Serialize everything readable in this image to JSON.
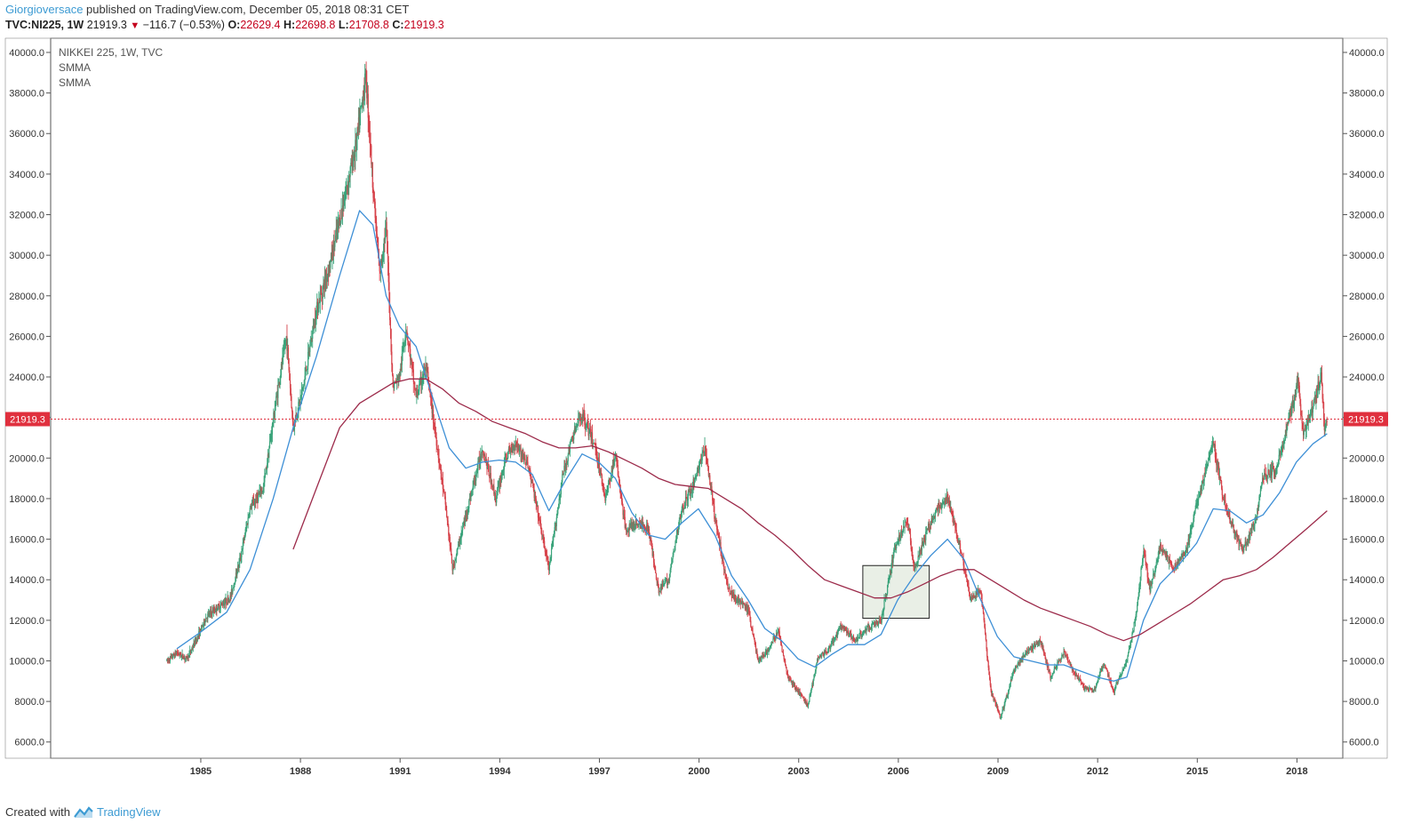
{
  "header": {
    "author": "Giorgioversace",
    "published_text": " published on TradingView.com, December 05, 2018 08:31 CET",
    "symbol": "TVC:NI225, 1W",
    "last": "21919.3",
    "change": "−116.7 (−0.53%)",
    "o_label": "O:",
    "o_value": "22629.4",
    "h_label": "H:",
    "h_value": "22698.8",
    "l_label": "L:",
    "l_value": "21708.8",
    "c_label": "C:",
    "c_value": "21919.3"
  },
  "footer": {
    "created_with": "Created with",
    "brand": "TradingView"
  },
  "legend": {
    "title": "NIKKEI 225, 1W, TVC",
    "indicator1": "SMMA",
    "indicator2": "SMMA"
  },
  "colors": {
    "up_candle": "#3aa37a",
    "down_candle": "#d6424a",
    "smma_fast": "#3d8fd6",
    "smma_slow": "#9c2a4a",
    "price_line": "#e0303e",
    "box_fill": "#e9efe6",
    "box_stroke": "#222222",
    "axis": "#555555"
  },
  "chart_data": {
    "type": "line",
    "title": "NIKKEI 225, 1W, TVC",
    "x_ticks": [
      "1985",
      "1988",
      "1991",
      "1994",
      "1997",
      "2000",
      "2003",
      "2006",
      "2009",
      "2012",
      "2015",
      "2018"
    ],
    "y_ticks": [
      6000,
      8000,
      10000,
      12000,
      14000,
      16000,
      18000,
      20000,
      22000,
      24000,
      26000,
      28000,
      30000,
      32000,
      34000,
      36000,
      38000,
      40000
    ],
    "y_tick_labels": [
      "6000.0",
      "8000.0",
      "10000.0",
      "12000.0",
      "14000.0",
      "16000.0",
      "18000.0",
      "20000.0",
      "22000.0",
      "24000.0",
      "26000.0",
      "28000.0",
      "30000.0",
      "32000.0",
      "34000.0",
      "36000.0",
      "38000.0",
      "40000.0"
    ],
    "ylim": [
      5200,
      40700
    ],
    "xlim": [
      1980.5,
      2019.4
    ],
    "last_price": 21919.3,
    "last_price_label": "21919.3",
    "series": [
      {
        "name": "NIKKEI 225",
        "kind": "price",
        "points": [
          [
            1984.0,
            10000
          ],
          [
            1984.3,
            10400
          ],
          [
            1984.6,
            10100
          ],
          [
            1984.9,
            11100
          ],
          [
            1985.2,
            12200
          ],
          [
            1985.5,
            12600
          ],
          [
            1985.9,
            13100
          ],
          [
            1986.2,
            15000
          ],
          [
            1986.5,
            17500
          ],
          [
            1986.9,
            18500
          ],
          [
            1987.3,
            23000
          ],
          [
            1987.6,
            26000
          ],
          [
            1987.8,
            21500
          ],
          [
            1988.1,
            23500
          ],
          [
            1988.5,
            27300
          ],
          [
            1988.9,
            29500
          ],
          [
            1989.3,
            32500
          ],
          [
            1989.7,
            35500
          ],
          [
            1989.99,
            38900
          ],
          [
            1990.2,
            33500
          ],
          [
            1990.4,
            29000
          ],
          [
            1990.6,
            31500
          ],
          [
            1990.8,
            23500
          ],
          [
            1991.0,
            24000
          ],
          [
            1991.2,
            26500
          ],
          [
            1991.5,
            23000
          ],
          [
            1991.8,
            24500
          ],
          [
            1992.1,
            21000
          ],
          [
            1992.4,
            17500
          ],
          [
            1992.6,
            14500
          ],
          [
            1992.9,
            16500
          ],
          [
            1993.2,
            18500
          ],
          [
            1993.5,
            20500
          ],
          [
            1993.9,
            18000
          ],
          [
            1994.2,
            20000
          ],
          [
            1994.5,
            20800
          ],
          [
            1994.9,
            19500
          ],
          [
            1995.2,
            17000
          ],
          [
            1995.5,
            14500
          ],
          [
            1995.9,
            19000
          ],
          [
            1996.2,
            21000
          ],
          [
            1996.5,
            22200
          ],
          [
            1996.9,
            20500
          ],
          [
            1997.2,
            18000
          ],
          [
            1997.5,
            20200
          ],
          [
            1997.8,
            16500
          ],
          [
            1998.2,
            16800
          ],
          [
            1998.5,
            16500
          ],
          [
            1998.8,
            13500
          ],
          [
            1999.1,
            14000
          ],
          [
            1999.5,
            17500
          ],
          [
            1999.8,
            18500
          ],
          [
            2000.2,
            20500
          ],
          [
            2000.5,
            17000
          ],
          [
            2000.9,
            13500
          ],
          [
            2001.2,
            13000
          ],
          [
            2001.5,
            12500
          ],
          [
            2001.8,
            10000
          ],
          [
            2002.1,
            10500
          ],
          [
            2002.4,
            11500
          ],
          [
            2002.7,
            9200
          ],
          [
            2003.0,
            8500
          ],
          [
            2003.3,
            7800
          ],
          [
            2003.6,
            10200
          ],
          [
            2003.9,
            10500
          ],
          [
            2004.3,
            11700
          ],
          [
            2004.7,
            11000
          ],
          [
            2005.0,
            11500
          ],
          [
            2005.5,
            12000
          ],
          [
            2005.9,
            15500
          ],
          [
            2006.3,
            17000
          ],
          [
            2006.5,
            14500
          ],
          [
            2006.9,
            16500
          ],
          [
            2007.2,
            17500
          ],
          [
            2007.5,
            18000
          ],
          [
            2007.9,
            15500
          ],
          [
            2008.2,
            13000
          ],
          [
            2008.5,
            13500
          ],
          [
            2008.8,
            8500
          ],
          [
            2009.1,
            7200
          ],
          [
            2009.5,
            9500
          ],
          [
            2009.9,
            10500
          ],
          [
            2010.3,
            11000
          ],
          [
            2010.6,
            9200
          ],
          [
            2011.0,
            10400
          ],
          [
            2011.3,
            9500
          ],
          [
            2011.6,
            8700
          ],
          [
            2011.9,
            8500
          ],
          [
            2012.2,
            9900
          ],
          [
            2012.5,
            8500
          ],
          [
            2012.9,
            10000
          ],
          [
            2013.2,
            12500
          ],
          [
            2013.4,
            15500
          ],
          [
            2013.6,
            13500
          ],
          [
            2013.9,
            15700
          ],
          [
            2014.3,
            14500
          ],
          [
            2014.7,
            15500
          ],
          [
            2014.95,
            17400
          ],
          [
            2015.3,
            19500
          ],
          [
            2015.5,
            20800
          ],
          [
            2015.8,
            18000
          ],
          [
            2016.1,
            16500
          ],
          [
            2016.4,
            15500
          ],
          [
            2016.8,
            17000
          ],
          [
            2016.99,
            19100
          ],
          [
            2017.4,
            19500
          ],
          [
            2017.8,
            22000
          ],
          [
            2018.05,
            23900
          ],
          [
            2018.2,
            21200
          ],
          [
            2018.5,
            22500
          ],
          [
            2018.75,
            24100
          ],
          [
            2018.85,
            21300
          ],
          [
            2018.93,
            21919.3
          ]
        ]
      },
      {
        "name": "SMMA",
        "kind": "smma_fast",
        "points": [
          [
            1984.3,
            10600
          ],
          [
            1985.0,
            11400
          ],
          [
            1985.8,
            12400
          ],
          [
            1986.5,
            14500
          ],
          [
            1987.2,
            18000
          ],
          [
            1987.8,
            21500
          ],
          [
            1988.5,
            25000
          ],
          [
            1989.2,
            29000
          ],
          [
            1989.8,
            32200
          ],
          [
            1990.2,
            31500
          ],
          [
            1990.6,
            28000
          ],
          [
            1991.0,
            26500
          ],
          [
            1991.5,
            25500
          ],
          [
            1992.0,
            23000
          ],
          [
            1992.5,
            20500
          ],
          [
            1993.0,
            19500
          ],
          [
            1993.5,
            19800
          ],
          [
            1994.0,
            19900
          ],
          [
            1994.5,
            19800
          ],
          [
            1995.0,
            19200
          ],
          [
            1995.5,
            17400
          ],
          [
            1996.0,
            18900
          ],
          [
            1996.5,
            20200
          ],
          [
            1997.0,
            19800
          ],
          [
            1997.5,
            19000
          ],
          [
            1998.0,
            17300
          ],
          [
            1998.5,
            16200
          ],
          [
            1999.0,
            16000
          ],
          [
            1999.5,
            16800
          ],
          [
            2000.0,
            17500
          ],
          [
            2000.5,
            16200
          ],
          [
            2001.0,
            14200
          ],
          [
            2001.5,
            13000
          ],
          [
            2002.0,
            11600
          ],
          [
            2002.5,
            11000
          ],
          [
            2003.0,
            10100
          ],
          [
            2003.5,
            9700
          ],
          [
            2004.0,
            10300
          ],
          [
            2004.5,
            10800
          ],
          [
            2005.0,
            10800
          ],
          [
            2005.5,
            11300
          ],
          [
            2006.0,
            13000
          ],
          [
            2006.5,
            14200
          ],
          [
            2007.0,
            15200
          ],
          [
            2007.5,
            16000
          ],
          [
            2008.0,
            15000
          ],
          [
            2008.5,
            13000
          ],
          [
            2009.0,
            11200
          ],
          [
            2009.5,
            10200
          ],
          [
            2010.0,
            10000
          ],
          [
            2010.5,
            9800
          ],
          [
            2011.0,
            9800
          ],
          [
            2011.5,
            9500
          ],
          [
            2012.0,
            9200
          ],
          [
            2012.5,
            9000
          ],
          [
            2012.9,
            9200
          ],
          [
            2013.4,
            12000
          ],
          [
            2013.9,
            13800
          ],
          [
            2014.5,
            14800
          ],
          [
            2015.0,
            15800
          ],
          [
            2015.5,
            17500
          ],
          [
            2016.0,
            17400
          ],
          [
            2016.5,
            16800
          ],
          [
            2017.0,
            17200
          ],
          [
            2017.5,
            18300
          ],
          [
            2018.0,
            19800
          ],
          [
            2018.5,
            20700
          ],
          [
            2018.93,
            21200
          ]
        ]
      },
      {
        "name": "SMMA",
        "kind": "smma_slow",
        "points": [
          [
            1987.8,
            15500
          ],
          [
            1988.5,
            18500
          ],
          [
            1989.2,
            21500
          ],
          [
            1989.8,
            22700
          ],
          [
            1990.3,
            23200
          ],
          [
            1990.8,
            23700
          ],
          [
            1991.3,
            23900
          ],
          [
            1991.8,
            23900
          ],
          [
            1992.3,
            23400
          ],
          [
            1992.8,
            22700
          ],
          [
            1993.3,
            22300
          ],
          [
            1993.8,
            21800
          ],
          [
            1994.3,
            21500
          ],
          [
            1994.8,
            21200
          ],
          [
            1995.3,
            20800
          ],
          [
            1995.8,
            20500
          ],
          [
            1996.3,
            20500
          ],
          [
            1996.8,
            20600
          ],
          [
            1997.3,
            20300
          ],
          [
            1997.8,
            19900
          ],
          [
            1998.3,
            19500
          ],
          [
            1998.8,
            19000
          ],
          [
            1999.3,
            18700
          ],
          [
            1999.8,
            18600
          ],
          [
            2000.3,
            18500
          ],
          [
            2000.8,
            18000
          ],
          [
            2001.3,
            17500
          ],
          [
            2001.8,
            16800
          ],
          [
            2002.3,
            16200
          ],
          [
            2002.8,
            15500
          ],
          [
            2003.3,
            14700
          ],
          [
            2003.8,
            14000
          ],
          [
            2004.3,
            13700
          ],
          [
            2004.8,
            13400
          ],
          [
            2005.3,
            13100
          ],
          [
            2005.8,
            13100
          ],
          [
            2006.3,
            13400
          ],
          [
            2006.8,
            13800
          ],
          [
            2007.3,
            14200
          ],
          [
            2007.8,
            14500
          ],
          [
            2008.3,
            14500
          ],
          [
            2008.8,
            14000
          ],
          [
            2009.3,
            13500
          ],
          [
            2009.8,
            13000
          ],
          [
            2010.3,
            12600
          ],
          [
            2010.8,
            12300
          ],
          [
            2011.3,
            12000
          ],
          [
            2011.8,
            11700
          ],
          [
            2012.3,
            11300
          ],
          [
            2012.8,
            11000
          ],
          [
            2013.3,
            11300
          ],
          [
            2013.8,
            11800
          ],
          [
            2014.3,
            12300
          ],
          [
            2014.8,
            12800
          ],
          [
            2015.3,
            13400
          ],
          [
            2015.8,
            14000
          ],
          [
            2016.3,
            14200
          ],
          [
            2016.8,
            14500
          ],
          [
            2017.3,
            15100
          ],
          [
            2017.8,
            15800
          ],
          [
            2018.3,
            16500
          ],
          [
            2018.93,
            17400
          ]
        ]
      }
    ],
    "rectangle": {
      "x0": 2004.95,
      "x1": 2006.95,
      "y0": 12100,
      "y1": 14700
    }
  }
}
